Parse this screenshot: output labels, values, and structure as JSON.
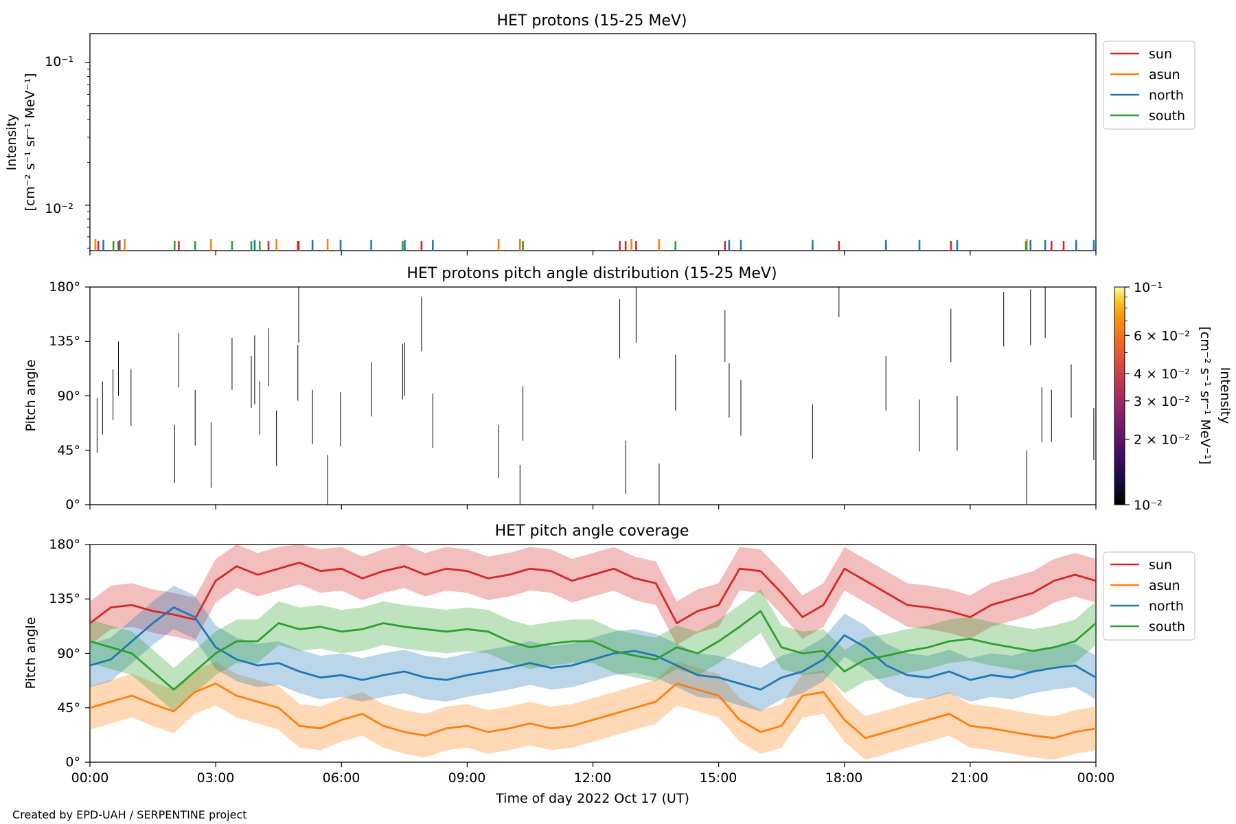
{
  "colors": {
    "sun": "#d62728",
    "asun": "#ff7f0e",
    "north": "#1f77b4",
    "south": "#2ca02c"
  },
  "credit": "Created by EPD-UAH / SERPENTINE project",
  "x_axis": {
    "label": "Time of day 2022 Oct 17 (UT)",
    "ticks": [
      "00:00",
      "03:00",
      "06:00",
      "09:00",
      "12:00",
      "15:00",
      "18:00",
      "21:00",
      "00:00"
    ],
    "range_hours": [
      0,
      24
    ]
  },
  "chart_data": [
    {
      "type": "line",
      "title": "HET protons (15-25 MeV)",
      "ylabel_line1": "Intensity",
      "ylabel_line2": "[cm⁻² s⁻¹ sr⁻¹ MeV⁻¹]",
      "yscale": "log",
      "ylim": [
        0.0048,
        0.16
      ],
      "ytick_labels": [
        "10⁻¹",
        "10⁻²"
      ],
      "legend": [
        "sun",
        "asun",
        "north",
        "south"
      ],
      "legend_position": "outside-top-right",
      "series": [
        {
          "name": "sun",
          "color_key": "sun",
          "spike_value": 0.0056,
          "x": [
            0.2,
            0.68,
            2.12,
            4.26,
            4.96,
            4.98,
            7.91,
            12.64,
            12.78,
            13.03,
            15.15,
            17.87,
            20.54,
            22.94,
            23.23
          ]
        },
        {
          "name": "asun",
          "color_key": "asun",
          "spike_value": 0.0058,
          "x": [
            0.13,
            0.83,
            2.89,
            4.45,
            5.67,
            9.75,
            10.26,
            12.92,
            13.58,
            22.35
          ]
        },
        {
          "name": "north",
          "color_key": "north",
          "spike_value": 0.0057,
          "x": [
            0.32,
            0.71,
            3.93,
            5.31,
            5.98,
            6.71,
            7.51,
            8.18,
            15.25,
            15.53,
            17.24,
            18.99,
            19.79,
            20.69,
            22.44,
            22.79,
            23.53,
            23.95
          ]
        },
        {
          "name": "south",
          "color_key": "south",
          "spike_value": 0.0056,
          "x": [
            0.56,
            2.02,
            2.51,
            3.39,
            3.85,
            4.05,
            7.46,
            10.33,
            13.97,
            22.33
          ]
        }
      ]
    },
    {
      "type": "heatmap",
      "title": "HET protons pitch angle distribution (15-25 MeV)",
      "ylabel": "Pitch angle",
      "ylim": [
        0,
        180
      ],
      "ytick_labels": [
        "0°",
        "45°",
        "90°",
        "135°",
        "180°"
      ],
      "colorbar": {
        "scale": "log",
        "range": [
          0.01,
          0.1
        ],
        "ticks": [
          {
            "value": 0.1,
            "label": "10⁻¹"
          },
          {
            "value": 0.06,
            "label": "6 × 10⁻²"
          },
          {
            "value": 0.04,
            "label": "4 × 10⁻²"
          },
          {
            "value": 0.03,
            "label": "3 × 10⁻²"
          },
          {
            "value": 0.02,
            "label": "2 × 10⁻²"
          },
          {
            "value": 0.01,
            "label": "10⁻²"
          }
        ],
        "label_line1": "Intensity",
        "label_line2": "[cm⁻² s⁻¹ sr⁻¹ MeV⁻¹]"
      },
      "segments": [
        [
          0.17,
          43,
          88
        ],
        [
          0.3,
          58,
          102
        ],
        [
          0.55,
          70,
          112
        ],
        [
          0.68,
          90,
          135
        ],
        [
          0.98,
          65,
          112
        ],
        [
          2.02,
          18,
          66
        ],
        [
          2.12,
          97,
          142
        ],
        [
          2.51,
          49,
          95
        ],
        [
          2.89,
          14,
          68
        ],
        [
          3.39,
          95,
          138
        ],
        [
          3.85,
          80,
          123
        ],
        [
          3.93,
          83,
          140
        ],
        [
          4.05,
          58,
          102
        ],
        [
          4.26,
          98,
          146
        ],
        [
          4.45,
          32,
          78
        ],
        [
          4.96,
          86,
          132
        ],
        [
          4.98,
          134,
          180
        ],
        [
          5.31,
          50,
          95
        ],
        [
          5.67,
          0,
          41
        ],
        [
          5.98,
          48,
          93
        ],
        [
          6.71,
          73,
          118
        ],
        [
          7.46,
          87,
          133
        ],
        [
          7.51,
          90,
          134
        ],
        [
          7.91,
          127,
          172
        ],
        [
          8.18,
          47,
          92
        ],
        [
          9.75,
          22,
          66
        ],
        [
          10.26,
          0,
          33
        ],
        [
          10.33,
          53,
          98
        ],
        [
          12.64,
          121,
          170
        ],
        [
          12.78,
          9,
          53
        ],
        [
          13.03,
          134,
          180
        ],
        [
          13.58,
          0,
          34
        ],
        [
          13.97,
          78,
          124
        ],
        [
          15.15,
          118,
          161
        ],
        [
          15.25,
          72,
          117
        ],
        [
          15.53,
          57,
          103
        ],
        [
          17.24,
          38,
          83
        ],
        [
          17.87,
          155,
          180
        ],
        [
          18.99,
          78,
          123
        ],
        [
          19.79,
          44,
          87
        ],
        [
          20.54,
          118,
          162
        ],
        [
          20.69,
          45,
          90
        ],
        [
          21.8,
          131,
          176
        ],
        [
          22.35,
          0,
          45
        ],
        [
          22.44,
          132,
          178
        ],
        [
          22.71,
          52,
          97
        ],
        [
          22.79,
          138,
          180
        ],
        [
          22.94,
          52,
          95
        ],
        [
          23.41,
          72,
          116
        ],
        [
          23.95,
          37,
          80
        ]
      ]
    },
    {
      "type": "area",
      "title": "HET pitch angle coverage",
      "ylabel": "Pitch angle",
      "ylim": [
        0,
        180
      ],
      "ytick_labels": [
        "0°",
        "45°",
        "90°",
        "135°",
        "180°"
      ],
      "legend": [
        "sun",
        "asun",
        "north",
        "south"
      ],
      "legend_position": "outside-top-right",
      "band_halfwidth_deg": 18,
      "x": [
        0,
        0.5,
        1,
        1.5,
        2,
        2.5,
        3,
        3.5,
        4,
        4.5,
        5,
        5.5,
        6,
        6.5,
        7,
        7.5,
        8,
        8.5,
        9,
        9.5,
        10,
        10.5,
        11,
        11.5,
        12,
        12.5,
        13,
        13.5,
        14,
        14.5,
        15,
        15.5,
        16,
        16.5,
        17,
        17.5,
        18,
        18.5,
        19,
        19.5,
        20,
        20.5,
        21,
        21.5,
        22,
        22.5,
        23,
        23.5,
        24
      ],
      "series": [
        {
          "name": "sun",
          "color_key": "sun",
          "values": [
            115,
            128,
            130,
            125,
            122,
            118,
            150,
            162,
            155,
            160,
            165,
            158,
            160,
            152,
            158,
            162,
            155,
            160,
            158,
            152,
            155,
            160,
            158,
            150,
            155,
            160,
            152,
            148,
            115,
            125,
            130,
            160,
            158,
            140,
            120,
            130,
            160,
            150,
            140,
            130,
            128,
            125,
            120,
            130,
            135,
            140,
            150,
            155,
            150
          ]
        },
        {
          "name": "asun",
          "color_key": "asun",
          "values": [
            45,
            50,
            55,
            48,
            42,
            58,
            65,
            55,
            50,
            45,
            30,
            28,
            35,
            40,
            30,
            25,
            22,
            28,
            30,
            25,
            28,
            32,
            28,
            30,
            35,
            40,
            45,
            50,
            65,
            60,
            55,
            35,
            25,
            30,
            55,
            58,
            35,
            20,
            25,
            30,
            35,
            40,
            30,
            28,
            25,
            22,
            20,
            25,
            28
          ]
        },
        {
          "name": "north",
          "color_key": "north",
          "values": [
            80,
            85,
            100,
            115,
            128,
            120,
            95,
            85,
            80,
            82,
            75,
            70,
            72,
            68,
            72,
            75,
            70,
            68,
            72,
            75,
            78,
            82,
            78,
            80,
            85,
            90,
            92,
            88,
            80,
            72,
            70,
            65,
            60,
            70,
            75,
            85,
            105,
            95,
            80,
            72,
            70,
            75,
            68,
            72,
            70,
            75,
            78,
            80,
            70
          ]
        },
        {
          "name": "south",
          "color_key": "south",
          "values": [
            100,
            95,
            90,
            75,
            60,
            75,
            90,
            100,
            100,
            115,
            110,
            112,
            108,
            110,
            115,
            112,
            110,
            108,
            110,
            108,
            100,
            95,
            98,
            100,
            100,
            92,
            88,
            85,
            95,
            90,
            100,
            112,
            125,
            95,
            90,
            92,
            75,
            85,
            88,
            92,
            95,
            100,
            102,
            98,
            95,
            92,
            95,
            100,
            115
          ]
        }
      ]
    }
  ]
}
